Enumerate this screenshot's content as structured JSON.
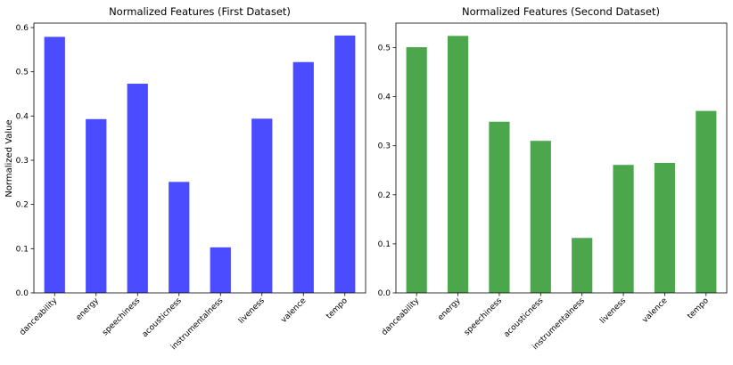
{
  "colors": {
    "bars_left": "#4b4bff",
    "bars_right": "#4ca64c"
  },
  "chart_data": [
    {
      "type": "bar",
      "title": "Normalized Features (First Dataset)",
      "ylabel": "Normalized Value",
      "xlabel": "",
      "categories": [
        "danceability",
        "energy",
        "speechiness",
        "acousticness",
        "instrumentalness",
        "liveness",
        "valence",
        "tempo"
      ],
      "values": [
        0.579,
        0.393,
        0.473,
        0.251,
        0.103,
        0.394,
        0.522,
        0.582
      ],
      "ylim": [
        0,
        0.61
      ],
      "yticks": [
        "0.0",
        "0.1",
        "0.2",
        "0.3",
        "0.4",
        "0.5",
        "0.6"
      ],
      "color": "#4b4bff"
    },
    {
      "type": "bar",
      "title": "Normalized Features (Second Dataset)",
      "ylabel": "",
      "xlabel": "",
      "categories": [
        "danceability",
        "energy",
        "speechiness",
        "acousticness",
        "instrumentalness",
        "liveness",
        "valence",
        "tempo"
      ],
      "values": [
        0.501,
        0.524,
        0.349,
        0.31,
        0.112,
        0.261,
        0.265,
        0.371
      ],
      "ylim": [
        0,
        0.55
      ],
      "yticks": [
        "0.0",
        "0.1",
        "0.2",
        "0.3",
        "0.4",
        "0.5"
      ],
      "color": "#4ca64c"
    }
  ]
}
